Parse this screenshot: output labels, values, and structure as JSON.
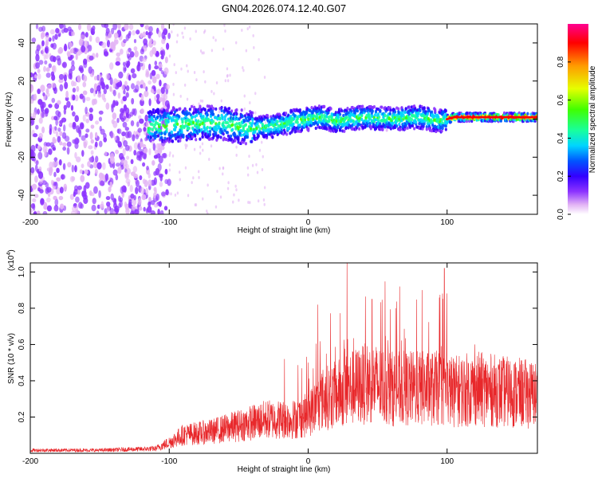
{
  "title": "GN04.2026.074.12.40.G07",
  "colors": {
    "snr_line": "#e8282b",
    "axis": "#000000",
    "colormap": [
      "#ffffff",
      "#e3b4f5",
      "#8c33ff",
      "#3300ff",
      "#0055ff",
      "#00d4ff",
      "#18ff9e",
      "#40ff00",
      "#e6ff00",
      "#ff9b00",
      "#ff0000",
      "#ff0090"
    ]
  },
  "chart_data": [
    {
      "type": "heatmap",
      "name": "spectrogram",
      "xlabel": "Height of straight line (km)",
      "ylabel": "Frequency (Hz)",
      "xlim": [
        -200,
        165
      ],
      "ylim": [
        -50,
        50
      ],
      "xticks": [
        -200,
        -100,
        0,
        100
      ],
      "yticks": [
        -40,
        -20,
        0,
        20,
        40
      ],
      "ridge": [
        {
          "x": -115,
          "y": -4
        },
        {
          "x": -100,
          "y": -3
        },
        {
          "x": -80,
          "y": -2
        },
        {
          "x": -60,
          "y": -2
        },
        {
          "x": -50,
          "y": -4
        },
        {
          "x": -40,
          "y": -5
        },
        {
          "x": -30,
          "y": -4
        },
        {
          "x": -20,
          "y": -3
        },
        {
          "x": -10,
          "y": -1
        },
        {
          "x": 0,
          "y": 0
        },
        {
          "x": 10,
          "y": 1
        },
        {
          "x": 20,
          "y": -1
        },
        {
          "x": 40,
          "y": 1
        },
        {
          "x": 60,
          "y": 0
        },
        {
          "x": 80,
          "y": 1
        },
        {
          "x": 95,
          "y": -1
        },
        {
          "x": 105,
          "y": 1
        },
        {
          "x": 120,
          "y": 1
        },
        {
          "x": 165,
          "y": 1
        }
      ],
      "colorbar": {
        "label": "Normalized spectral amplitude",
        "range": [
          0,
          1
        ],
        "ticks": [
          "0.0",
          "0.2",
          "0.4",
          "0.6",
          "0.8"
        ],
        "tick_values": [
          0,
          0.2,
          0.4,
          0.6,
          0.8
        ]
      }
    },
    {
      "type": "line",
      "name": "snr",
      "xlabel": "Height of straight line (km)",
      "ylabel": "SNR (10 * v/v)",
      "scale_label": "(x10",
      "scale_exponent": "4",
      "scale_close": ")",
      "xlim": [
        -200,
        165
      ],
      "ylim": [
        0,
        1.05
      ],
      "xticks": [
        -200,
        -100,
        0,
        100
      ],
      "yticks": [
        0.2,
        0.4,
        0.6,
        0.8,
        1.0
      ],
      "ytick_labels": [
        "0.2",
        "0.4",
        "0.6",
        "0.8",
        "1.0"
      ],
      "envelope": [
        {
          "x": -200,
          "y": 0.02
        },
        {
          "x": -150,
          "y": 0.02
        },
        {
          "x": -110,
          "y": 0.03
        },
        {
          "x": -100,
          "y": 0.07
        },
        {
          "x": -90,
          "y": 0.12
        },
        {
          "x": -70,
          "y": 0.14
        },
        {
          "x": -50,
          "y": 0.18
        },
        {
          "x": -30,
          "y": 0.22
        },
        {
          "x": -10,
          "y": 0.22
        },
        {
          "x": 0,
          "y": 0.25
        },
        {
          "x": 10,
          "y": 0.35
        },
        {
          "x": 20,
          "y": 0.38
        },
        {
          "x": 30,
          "y": 0.42
        },
        {
          "x": 45,
          "y": 0.46
        },
        {
          "x": 60,
          "y": 0.42
        },
        {
          "x": 80,
          "y": 0.42
        },
        {
          "x": 95,
          "y": 0.42
        },
        {
          "x": 105,
          "y": 0.4
        },
        {
          "x": 120,
          "y": 0.42
        },
        {
          "x": 140,
          "y": 0.4
        },
        {
          "x": 165,
          "y": 0.38
        }
      ],
      "peaks": [
        {
          "x": 28,
          "y": 1.05
        },
        {
          "x": 98,
          "y": 1.02
        },
        {
          "x": 7,
          "y": 0.82
        },
        {
          "x": 46,
          "y": 0.85
        },
        {
          "x": 82,
          "y": 0.9
        },
        {
          "x": 120,
          "y": 0.6
        },
        {
          "x": -17,
          "y": 0.52
        },
        {
          "x": 63,
          "y": 0.8
        }
      ]
    }
  ]
}
